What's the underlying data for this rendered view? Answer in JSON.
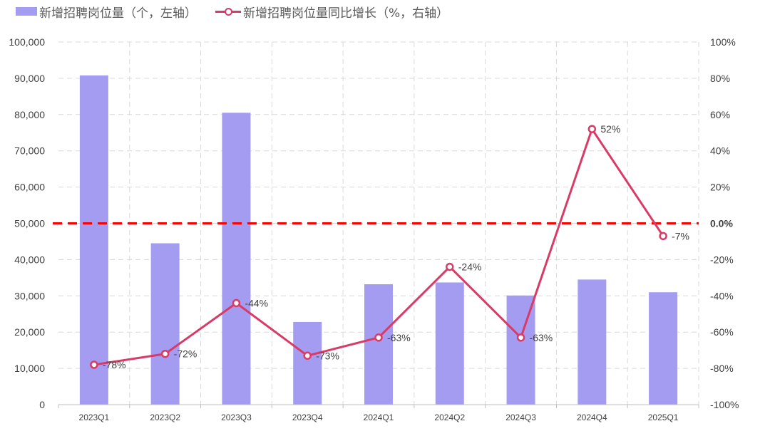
{
  "legend": {
    "bar_label": "新增招聘岗位量（个，左轴）",
    "line_label": "新增招聘岗位量同比增长（%，右轴）"
  },
  "colors": {
    "bar": "#a49cf1",
    "line": "#d93a66",
    "reference": "#ff0000",
    "grid": "#d9d9d9"
  },
  "chart_data": {
    "type": "bar+line",
    "categories": [
      "2023Q1",
      "2023Q2",
      "2023Q3",
      "2023Q4",
      "2024Q1",
      "2024Q2",
      "2024Q3",
      "2024Q4",
      "2025Q1"
    ],
    "series": [
      {
        "name": "新增招聘岗位量（个，左轴）",
        "type": "bar",
        "axis": "left",
        "values": [
          90800,
          44500,
          80500,
          22800,
          33200,
          33700,
          30100,
          34500,
          31000
        ]
      },
      {
        "name": "新增招聘岗位量同比增长（%，右轴）",
        "type": "line",
        "axis": "right",
        "values": [
          -78,
          -72,
          -44,
          -73,
          -63,
          -24,
          -63,
          52,
          -7
        ],
        "data_labels": [
          "-78%",
          "-72%",
          "-44%",
          "-73%",
          "-63%",
          "-24%",
          "-63%",
          "52%",
          "-7%"
        ]
      }
    ],
    "left_axis": {
      "ylim": [
        0,
        100000
      ],
      "tick_labels": [
        "0",
        "10,000",
        "20,000",
        "30,000",
        "40,000",
        "50,000",
        "60,000",
        "70,000",
        "80,000",
        "90,000",
        "100,000"
      ]
    },
    "right_axis": {
      "ylim": [
        -100,
        100
      ],
      "tick_labels": [
        "-100%",
        "-80%",
        "-60%",
        "-40%",
        "-20%",
        "0.0%",
        "20%",
        "40%",
        "60%",
        "80%",
        "100%"
      ]
    },
    "reference_line": {
      "axis": "right",
      "value": 0,
      "label": "0.0%"
    },
    "grid": true,
    "legend_position": "top-left"
  }
}
